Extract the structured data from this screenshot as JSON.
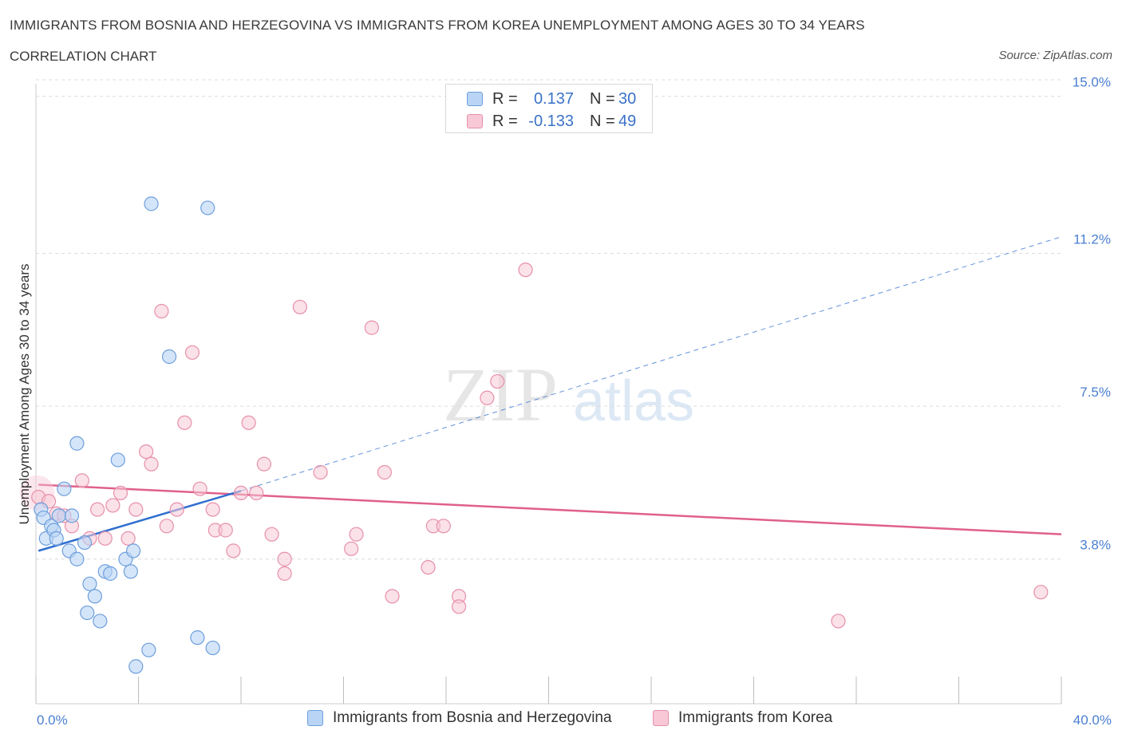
{
  "header": {
    "title": "IMMIGRANTS FROM BOSNIA AND HERZEGOVINA VS IMMIGRANTS FROM KOREA UNEMPLOYMENT AMONG AGES 30 TO 34 YEARS",
    "subtitle": "CORRELATION CHART",
    "source": "Source: ZipAtlas.com"
  },
  "watermark": {
    "zip": "ZIP",
    "atlas": "atlas"
  },
  "legend_top": {
    "rows": [
      {
        "r_label": "R =",
        "r_value": "0.137",
        "n_label": "N =",
        "n_value": "30"
      },
      {
        "r_label": "R =",
        "r_value": "-0.133",
        "n_label": "N =",
        "n_value": "49"
      }
    ]
  },
  "legend_bottom": {
    "items": [
      {
        "label": "Immigrants from Bosnia and Herzegovina"
      },
      {
        "label": "Immigrants from Korea"
      }
    ]
  },
  "colors": {
    "blue_fill": "#b9d4f5",
    "blue_stroke": "#6d9fdc",
    "blue_line": "#2f6fd0",
    "pink_fill": "#f8c8d6",
    "pink_stroke": "#e690ab",
    "pink_line": "#e0608b",
    "grid": "#dcdcdc",
    "tick_text": "#4a7fd0"
  },
  "chart_data": {
    "type": "scatter",
    "title": "IMMIGRANTS FROM BOSNIA AND HERZEGOVINA VS IMMIGRANTS FROM KOREA UNEMPLOYMENT AMONG AGES 30 TO 34 YEARS",
    "xlabel": "",
    "ylabel": "Unemployment Among Ages 30 to 34 years",
    "xlim": [
      0,
      40
    ],
    "ylim": [
      0.3,
      15.4
    ],
    "x_tick_labels": [
      "0.0%",
      "40.0%"
    ],
    "y_ticks": [
      3.8,
      7.5,
      11.2,
      15.0
    ],
    "y_tick_labels": [
      "3.8%",
      "7.5%",
      "11.2%",
      "15.0%"
    ],
    "grid": "horizontal dashed",
    "legend_position": "top-center and bottom",
    "series": [
      {
        "name": "Immigrants from Bosnia and Herzegovina",
        "R": 0.137,
        "N": 30,
        "trend": {
          "x": [
            0.1,
            8.0
          ],
          "y": [
            4.0,
            5.45
          ],
          "dashed_extension": {
            "x": [
              8.0,
              40.0
            ],
            "y": [
              5.45,
              11.6
            ]
          }
        },
        "points": [
          [
            0.2,
            5.0
          ],
          [
            0.3,
            4.8
          ],
          [
            0.4,
            4.3
          ],
          [
            0.6,
            4.6
          ],
          [
            0.7,
            4.5
          ],
          [
            0.8,
            4.3
          ],
          [
            0.9,
            4.85
          ],
          [
            1.1,
            5.5
          ],
          [
            1.4,
            4.85
          ],
          [
            1.3,
            4.0
          ],
          [
            1.6,
            3.8
          ],
          [
            1.6,
            6.6
          ],
          [
            1.9,
            4.2
          ],
          [
            2.1,
            3.2
          ],
          [
            2.0,
            2.5
          ],
          [
            2.3,
            2.9
          ],
          [
            2.5,
            2.3
          ],
          [
            2.7,
            3.5
          ],
          [
            2.9,
            3.45
          ],
          [
            3.2,
            6.2
          ],
          [
            3.5,
            3.8
          ],
          [
            3.7,
            3.5
          ],
          [
            3.8,
            4.0
          ],
          [
            3.9,
            1.2
          ],
          [
            4.4,
            1.6
          ],
          [
            4.5,
            12.4
          ],
          [
            5.2,
            8.7
          ],
          [
            6.3,
            1.9
          ],
          [
            6.7,
            12.3
          ],
          [
            6.9,
            1.65
          ]
        ]
      },
      {
        "name": "Immigrants from Korea",
        "R": -0.133,
        "N": 49,
        "trend": {
          "x": [
            0.1,
            40.0
          ],
          "y": [
            5.6,
            4.4
          ]
        },
        "points": [
          [
            0.1,
            5.3
          ],
          [
            0.5,
            5.2
          ],
          [
            0.8,
            4.9
          ],
          [
            1.1,
            4.85
          ],
          [
            1.4,
            4.6
          ],
          [
            1.8,
            5.7
          ],
          [
            2.1,
            4.3
          ],
          [
            2.4,
            5.0
          ],
          [
            2.7,
            4.3
          ],
          [
            3.0,
            5.1
          ],
          [
            3.3,
            5.4
          ],
          [
            3.6,
            4.3
          ],
          [
            3.9,
            5.0
          ],
          [
            4.3,
            6.4
          ],
          [
            4.5,
            6.1
          ],
          [
            4.9,
            9.8
          ],
          [
            5.1,
            4.6
          ],
          [
            5.5,
            5.0
          ],
          [
            5.8,
            7.1
          ],
          [
            6.1,
            8.8
          ],
          [
            6.4,
            5.5
          ],
          [
            6.9,
            5.0
          ],
          [
            7.0,
            4.5
          ],
          [
            7.4,
            4.5
          ],
          [
            7.7,
            4.0
          ],
          [
            8.0,
            5.4
          ],
          [
            8.3,
            7.1
          ],
          [
            8.6,
            5.4
          ],
          [
            8.9,
            6.1
          ],
          [
            9.2,
            4.4
          ],
          [
            9.7,
            3.8
          ],
          [
            9.7,
            3.45
          ],
          [
            10.3,
            9.9
          ],
          [
            11.1,
            5.9
          ],
          [
            12.3,
            4.05
          ],
          [
            12.5,
            4.4
          ],
          [
            13.1,
            9.4
          ],
          [
            13.6,
            5.9
          ],
          [
            13.9,
            2.9
          ],
          [
            15.3,
            3.6
          ],
          [
            15.5,
            4.6
          ],
          [
            15.9,
            4.6
          ],
          [
            16.5,
            2.9
          ],
          [
            16.5,
            2.65
          ],
          [
            17.6,
            7.7
          ],
          [
            18.0,
            8.1
          ],
          [
            19.1,
            10.8
          ],
          [
            31.3,
            2.3
          ],
          [
            39.2,
            3.0
          ]
        ]
      }
    ]
  }
}
